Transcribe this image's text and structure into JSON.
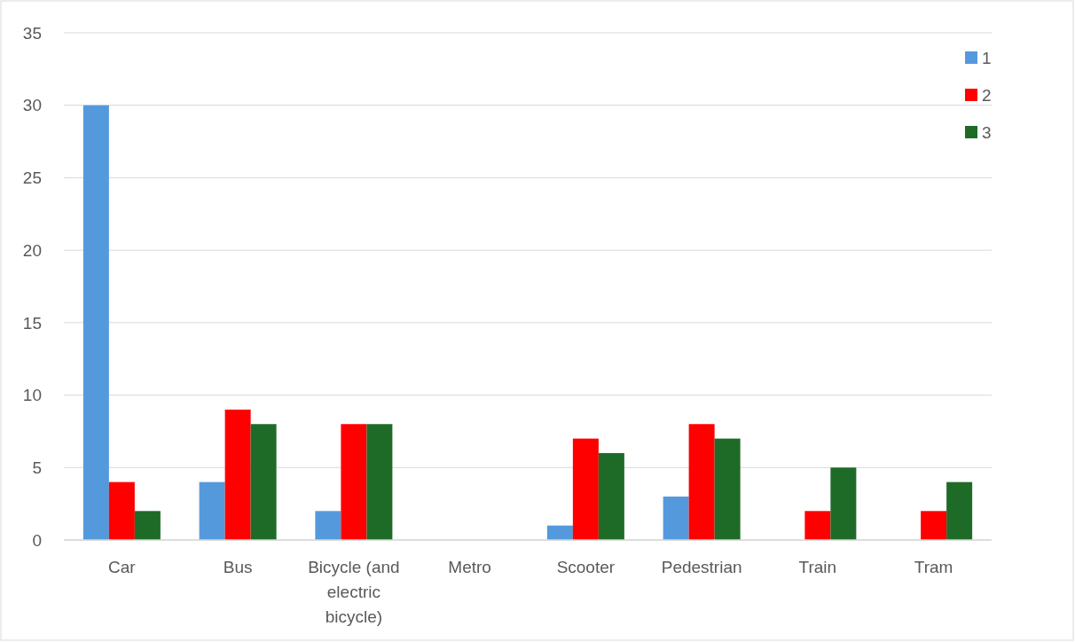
{
  "chart_data": {
    "type": "bar",
    "categories": [
      "Car",
      "Bus",
      "Bicycle (and electric bicycle)",
      "Metro",
      "Scooter",
      "Pedestrian",
      "Train",
      "Tram"
    ],
    "series": [
      {
        "name": "1",
        "color": "#5599dd",
        "values": [
          30,
          4,
          2,
          0,
          1,
          3,
          0,
          0
        ]
      },
      {
        "name": "2",
        "color": "#ff0000",
        "values": [
          4,
          9,
          8,
          0,
          7,
          8,
          2,
          2
        ]
      },
      {
        "name": "3",
        "color": "#1e6b28",
        "values": [
          2,
          8,
          8,
          0,
          6,
          7,
          5,
          4
        ]
      }
    ],
    "ylim": [
      0,
      35
    ],
    "yticks": [
      0,
      5,
      10,
      15,
      20,
      25,
      30,
      35
    ],
    "grid": "y",
    "legend": "top right"
  }
}
